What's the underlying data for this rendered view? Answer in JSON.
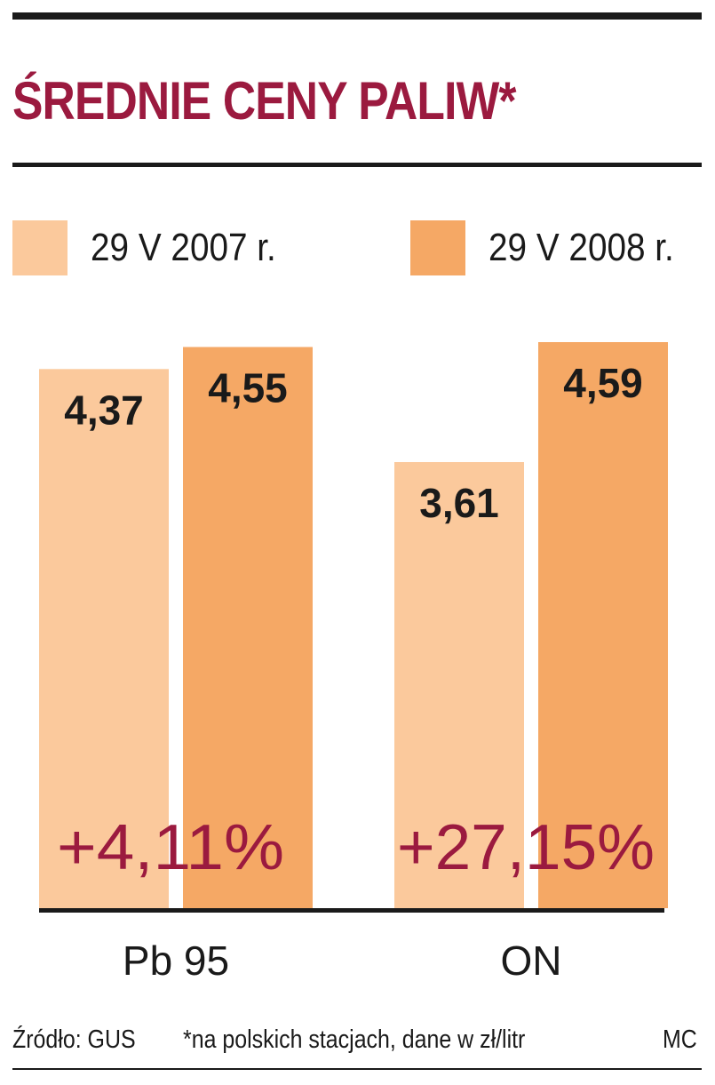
{
  "title": "ŚREDNIE CENY PALIW*",
  "colors": {
    "accent": "#9b1a3f",
    "series_2007": "#fbc99c",
    "series_2008": "#f5a865",
    "text": "#1a1a1a"
  },
  "chart_data": {
    "type": "bar",
    "title": "ŚREDNIE CENY PALIW*",
    "categories": [
      "Pb 95",
      "ON"
    ],
    "series": [
      {
        "name": "29 V 2007 r.",
        "values": [
          4.37,
          3.61
        ],
        "labels": [
          "4,37",
          "3,61"
        ]
      },
      {
        "name": "29 V 2008 r.",
        "values": [
          4.55,
          4.59
        ],
        "labels": [
          "4,55",
          "4,59"
        ]
      }
    ],
    "annotations": [
      "+4,11%",
      "+27,15%"
    ],
    "xlabel": "",
    "ylabel": "",
    "grid": false,
    "legend": "top"
  },
  "footer": {
    "source": "Źródło: GUS",
    "note": "*na polskich stacjach, dane w zł/litr",
    "credit": "MC"
  }
}
